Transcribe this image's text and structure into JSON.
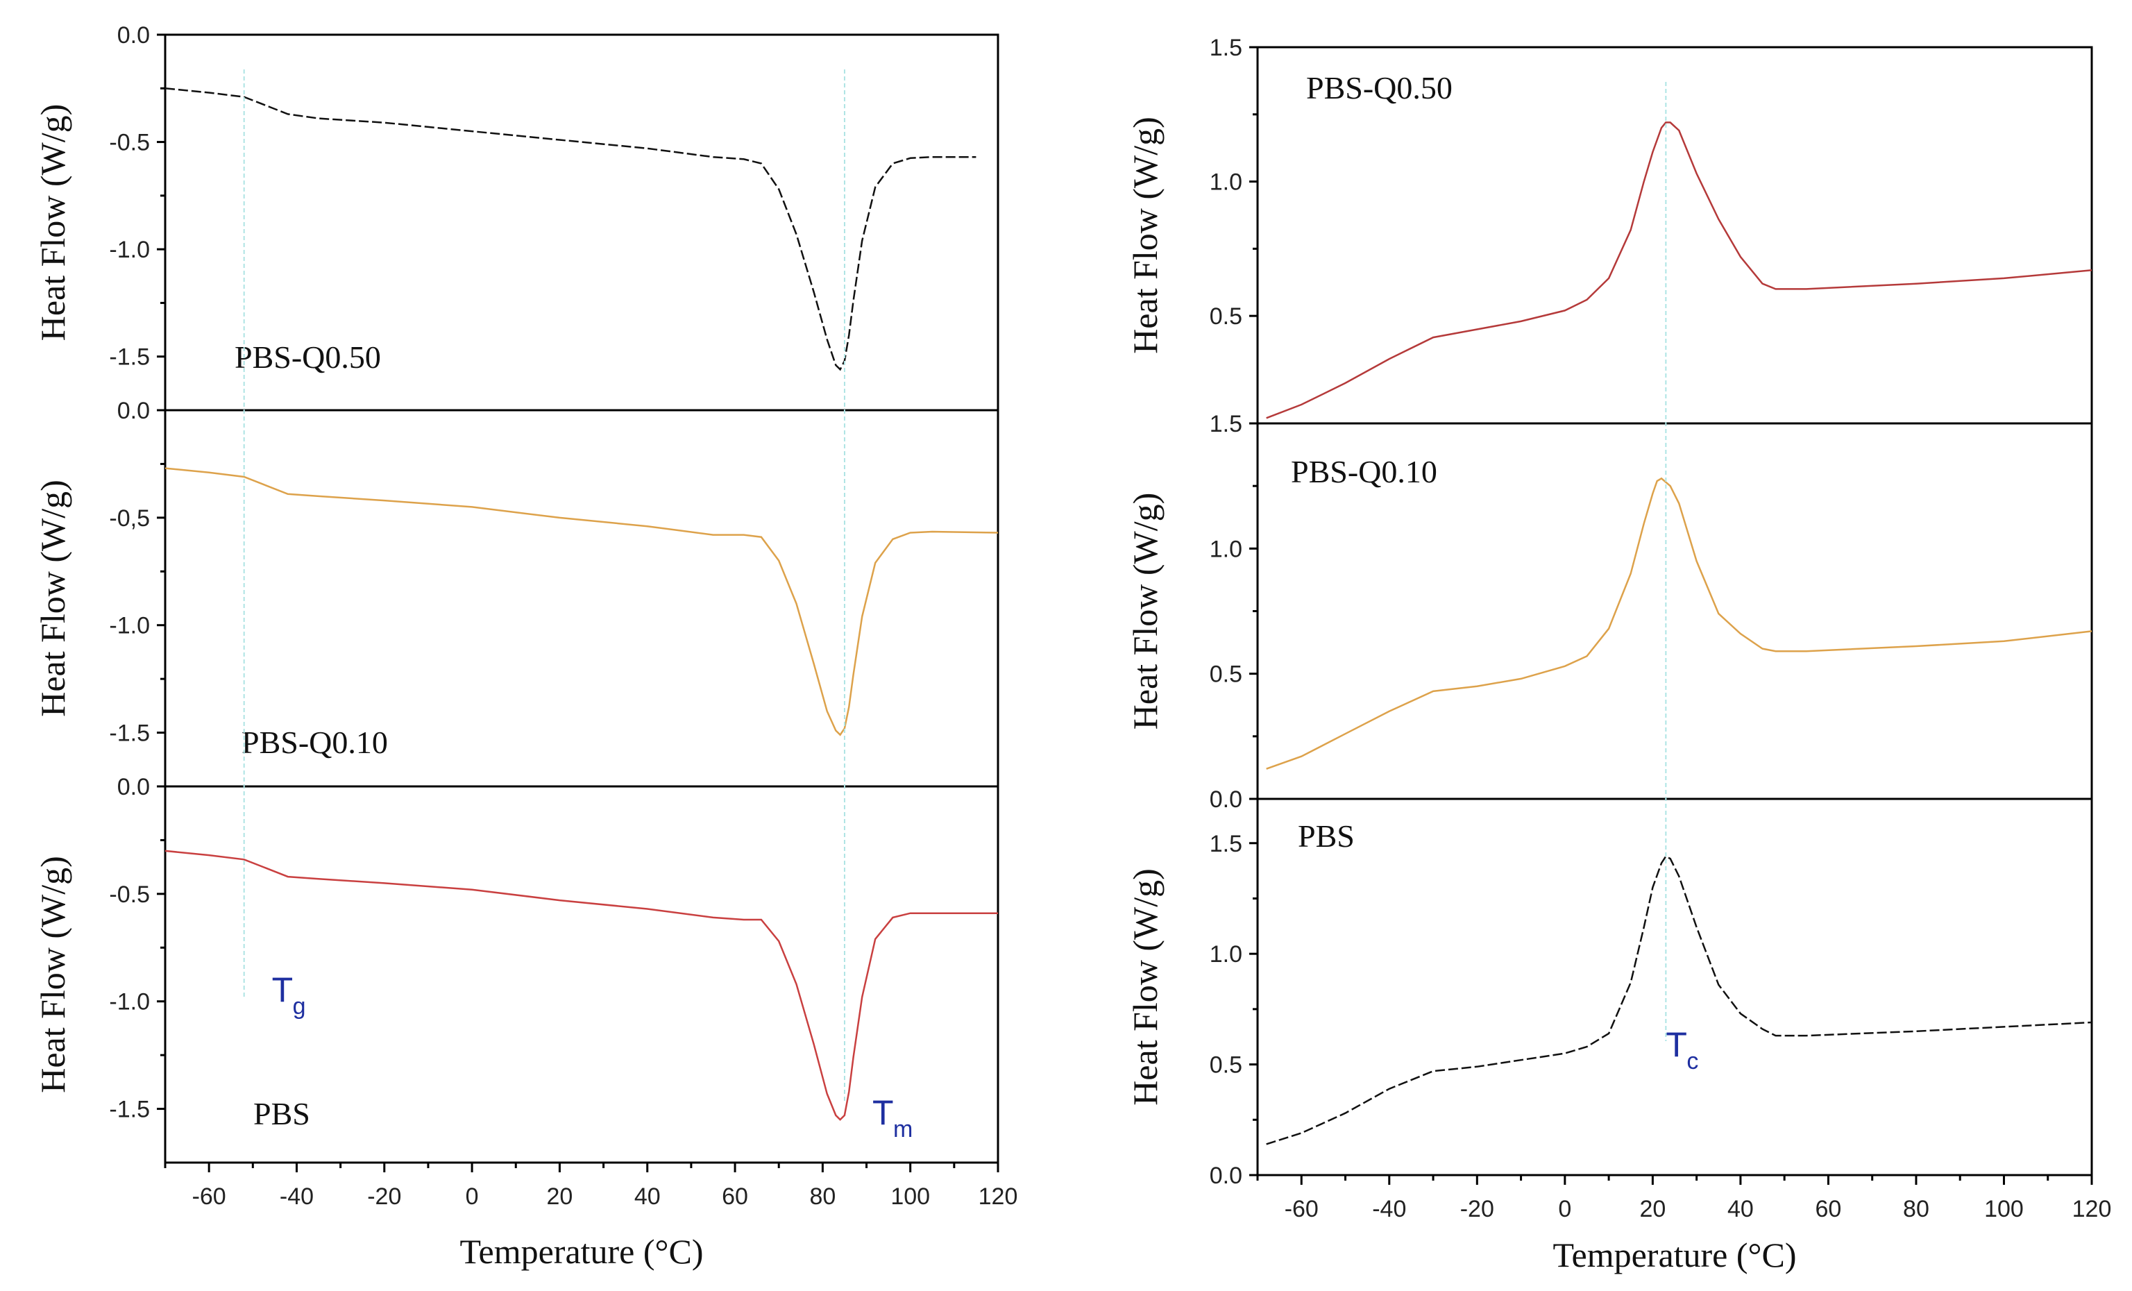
{
  "chart_data": [
    {
      "id": "left",
      "type": "line",
      "title": "",
      "xlabel": "Temperature (°C)",
      "xlim": [
        -70,
        120
      ],
      "x_ticks": [
        -60,
        -40,
        -20,
        0,
        20,
        40,
        60,
        80,
        100,
        120
      ],
      "markers": [
        {
          "name": "Tg",
          "main": "T",
          "sub": "g",
          "x": -52
        },
        {
          "name": "Tm",
          "main": "T",
          "sub": "m",
          "x": 85
        }
      ],
      "panels": [
        {
          "label": "PBS-Q0.50",
          "ylabel": "Heat Flow (W/g)",
          "ylim": [
            -1.75,
            0.0
          ],
          "y_ticks": [
            0.0,
            -0.5,
            -1.0,
            -1.5
          ],
          "y_tick_labels": [
            "0.0",
            "-0.5",
            "-1.0",
            "-1.5"
          ],
          "color": "#111111",
          "dashed": true,
          "x": [
            -70,
            -60,
            -52,
            -47,
            -42,
            -35,
            -20,
            0,
            20,
            40,
            55,
            62,
            66,
            70,
            74,
            78,
            81,
            83,
            84,
            85,
            86,
            87,
            89,
            92,
            96,
            100,
            105,
            115
          ],
          "y": [
            -0.25,
            -0.27,
            -0.29,
            -0.33,
            -0.37,
            -0.39,
            -0.41,
            -0.45,
            -0.49,
            -0.53,
            -0.57,
            -0.58,
            -0.6,
            -0.72,
            -0.93,
            -1.2,
            -1.42,
            -1.54,
            -1.56,
            -1.52,
            -1.4,
            -1.24,
            -0.96,
            -0.71,
            -0.6,
            -0.575,
            -0.57,
            -0.57
          ]
        },
        {
          "label": "PBS-Q0.10",
          "ylabel": "Heat Flow (W/g)",
          "ylim": [
            -1.75,
            0.0
          ],
          "y_ticks": [
            0.0,
            -0.5,
            -1.0,
            -1.5
          ],
          "y_tick_labels": [
            "0.0",
            "-0,5",
            "-1.0",
            "-1.5"
          ],
          "color": "#dda24b",
          "dashed": false,
          "x": [
            -70,
            -60,
            -52,
            -47,
            -42,
            -35,
            -20,
            0,
            20,
            40,
            55,
            62,
            66,
            70,
            74,
            78,
            81,
            83,
            84,
            85,
            86,
            87,
            89,
            92,
            96,
            100,
            105,
            120
          ],
          "y": [
            -0.27,
            -0.29,
            -0.31,
            -0.35,
            -0.39,
            -0.4,
            -0.42,
            -0.45,
            -0.5,
            -0.54,
            -0.58,
            -0.58,
            -0.59,
            -0.7,
            -0.9,
            -1.18,
            -1.4,
            -1.49,
            -1.51,
            -1.48,
            -1.38,
            -1.23,
            -0.96,
            -0.71,
            -0.6,
            -0.57,
            -0.565,
            -0.57
          ]
        },
        {
          "label": "PBS",
          "ylabel": "Heat Flow (W/g)",
          "ylim": [
            -1.75,
            0.0
          ],
          "y_ticks": [
            0.0,
            -0.5,
            -1.0,
            -1.5
          ],
          "y_tick_labels": [
            "0.0",
            "-0.5",
            "-1.0",
            "-1.5"
          ],
          "color": "#c94040",
          "dashed": false,
          "x": [
            -70,
            -60,
            -52,
            -47,
            -42,
            -35,
            -20,
            0,
            20,
            40,
            55,
            62,
            66,
            70,
            74,
            78,
            81,
            83,
            84,
            85,
            86,
            87,
            89,
            92,
            96,
            100,
            105,
            120
          ],
          "y": [
            -0.3,
            -0.32,
            -0.34,
            -0.38,
            -0.42,
            -0.43,
            -0.45,
            -0.48,
            -0.53,
            -0.57,
            -0.61,
            -0.62,
            -0.62,
            -0.72,
            -0.92,
            -1.2,
            -1.43,
            -1.53,
            -1.55,
            -1.53,
            -1.42,
            -1.26,
            -0.98,
            -0.71,
            -0.61,
            -0.59,
            -0.59,
            -0.59
          ]
        }
      ]
    },
    {
      "id": "right",
      "type": "line",
      "title": "",
      "xlabel": "Temperature (°C)",
      "xlim": [
        -70,
        120
      ],
      "x_ticks": [
        -60,
        -40,
        -20,
        0,
        20,
        40,
        60,
        80,
        100,
        120
      ],
      "markers": [
        {
          "name": "Tc",
          "main": "T",
          "sub": "c",
          "x": 23
        }
      ],
      "panels": [
        {
          "label": "PBS-Q0.50",
          "ylabel": "Heat Flow (W/g)",
          "ylim": [
            0.1,
            1.5
          ],
          "y_ticks": [
            1.5,
            1.0,
            0.5
          ],
          "y_tick_labels": [
            "1.5",
            "1.0",
            "0.5"
          ],
          "color": "#b53a3a",
          "dashed": false,
          "x": [
            -68,
            -60,
            -50,
            -40,
            -30,
            -20,
            -10,
            0,
            5,
            10,
            15,
            18,
            20,
            22,
            23,
            24,
            26,
            30,
            35,
            40,
            45,
            48,
            55,
            80,
            100,
            120
          ],
          "y": [
            0.12,
            0.17,
            0.25,
            0.34,
            0.42,
            0.45,
            0.48,
            0.52,
            0.56,
            0.64,
            0.82,
            1.0,
            1.11,
            1.2,
            1.22,
            1.22,
            1.19,
            1.03,
            0.86,
            0.72,
            0.62,
            0.6,
            0.6,
            0.62,
            0.64,
            0.67
          ]
        },
        {
          "label": "PBS-Q0.10",
          "ylabel": "Heat Flow (W/g)",
          "ylim": [
            0.0,
            1.5
          ],
          "y_ticks": [
            1.5,
            1.0,
            0.5,
            0.0
          ],
          "y_tick_labels": [
            "1.5",
            "1.0",
            "0.5",
            "0.0"
          ],
          "color": "#dda24b",
          "dashed": false,
          "x": [
            -68,
            -60,
            -50,
            -40,
            -30,
            -20,
            -10,
            0,
            5,
            10,
            15,
            18,
            20,
            21,
            22,
            24,
            26,
            30,
            35,
            40,
            45,
            48,
            55,
            80,
            100,
            120
          ],
          "y": [
            0.12,
            0.17,
            0.26,
            0.35,
            0.43,
            0.45,
            0.48,
            0.53,
            0.57,
            0.68,
            0.9,
            1.1,
            1.22,
            1.27,
            1.28,
            1.25,
            1.18,
            0.95,
            0.74,
            0.66,
            0.6,
            0.59,
            0.59,
            0.61,
            0.63,
            0.67
          ]
        },
        {
          "label": "PBS",
          "ylabel": "Heat Flow (W/g)",
          "ylim": [
            0.0,
            1.7
          ],
          "y_ticks": [
            1.5,
            1.0,
            0.5,
            0.0
          ],
          "y_tick_labels": [
            "1.5",
            "1.0",
            "0.5",
            "0.0"
          ],
          "color": "#111111",
          "dashed": true,
          "x": [
            -68,
            -60,
            -50,
            -40,
            -30,
            -20,
            -10,
            0,
            5,
            10,
            15,
            18,
            20,
            22,
            23,
            24,
            26,
            30,
            35,
            40,
            45,
            48,
            55,
            80,
            100,
            120
          ],
          "y": [
            0.14,
            0.19,
            0.28,
            0.39,
            0.47,
            0.49,
            0.52,
            0.55,
            0.58,
            0.64,
            0.87,
            1.12,
            1.3,
            1.41,
            1.44,
            1.43,
            1.35,
            1.12,
            0.86,
            0.73,
            0.66,
            0.63,
            0.63,
            0.65,
            0.67,
            0.69
          ]
        }
      ]
    }
  ]
}
